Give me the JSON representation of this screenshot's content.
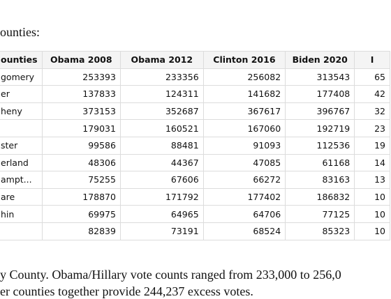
{
  "intro": "ounties:",
  "table": {
    "header": [
      "ounties",
      "Obama 2008",
      "Obama 2012",
      "Clinton 2016",
      "Biden 2020",
      "I"
    ],
    "rows": [
      [
        "gomery",
        "253393",
        "233356",
        "256082",
        "313543",
        "65"
      ],
      [
        "er",
        "137833",
        "124311",
        "141682",
        "177408",
        "42"
      ],
      [
        "heny",
        "373153",
        "352687",
        "367617",
        "396767",
        "32"
      ],
      [
        null,
        "179031",
        "160521",
        "167060",
        "192719",
        "23"
      ],
      [
        "ster",
        "99586",
        "88481",
        "91093",
        "112536",
        "19"
      ],
      [
        "erland",
        "48306",
        "44367",
        "47085",
        "61168",
        "14"
      ],
      [
        "ampt...",
        "75255",
        "67606",
        "66272",
        "83163",
        "13"
      ],
      [
        "are",
        "178870",
        "171792",
        "177402",
        "186832",
        "10"
      ],
      [
        "hin",
        "69975",
        "64965",
        "64706",
        "77125",
        "10"
      ],
      [
        null,
        "82839",
        "73191",
        "68524",
        "85323",
        "10"
      ]
    ]
  },
  "caption": [
    "y County. Obama/Hillary vote counts ranged from 233,000 to 256,0",
    "er counties together provide 244,237 excess votes."
  ]
}
